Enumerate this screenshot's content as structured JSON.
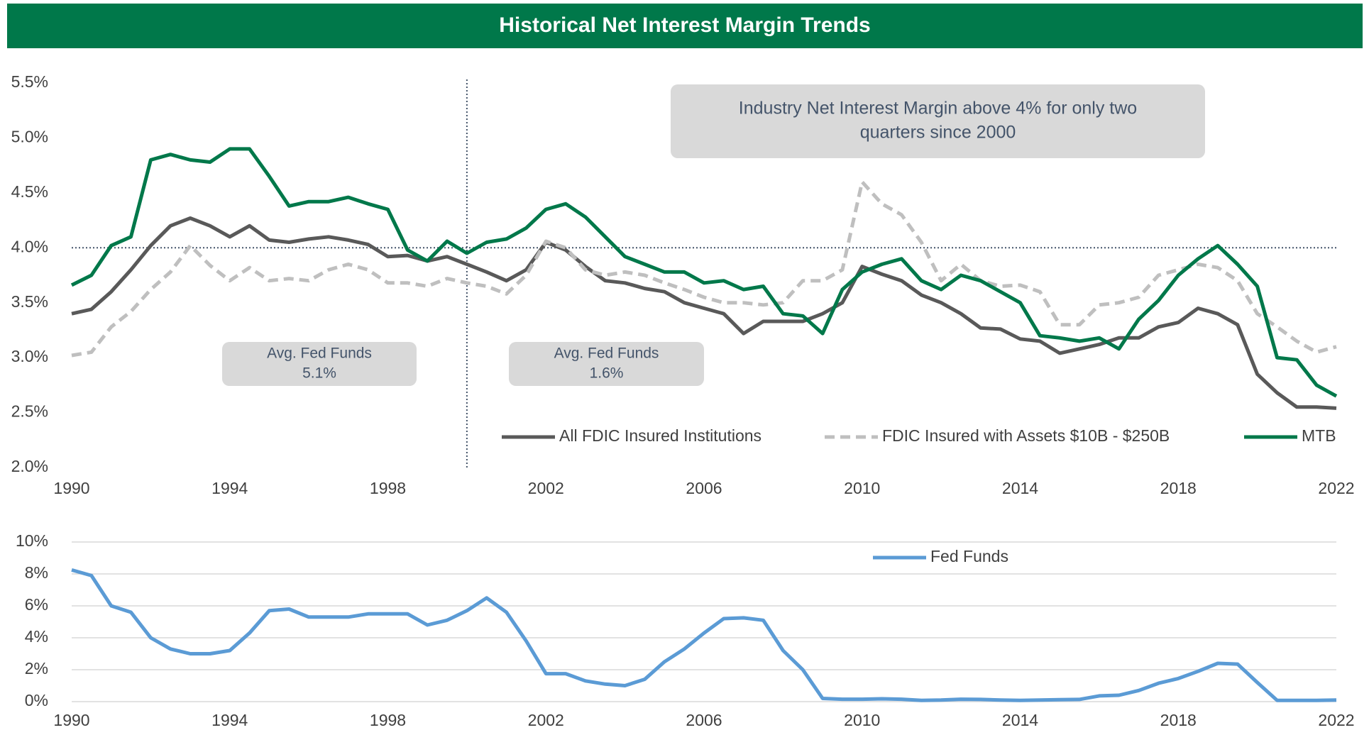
{
  "chart_data": [
    {
      "type": "line",
      "title": "Historical Net Interest Margin Trends",
      "x": [
        1990,
        1990.5,
        1991,
        1991.5,
        1992,
        1992.5,
        1993,
        1993.5,
        1994,
        1994.5,
        1995,
        1995.5,
        1996,
        1996.5,
        1997,
        1997.5,
        1998,
        1998.5,
        1999,
        1999.5,
        2000,
        2000.5,
        2001,
        2001.5,
        2002,
        2002.5,
        2003,
        2003.5,
        2004,
        2004.5,
        2005,
        2005.5,
        2006,
        2006.5,
        2007,
        2007.5,
        2008,
        2008.5,
        2009,
        2009.5,
        2010,
        2010.5,
        2011,
        2011.5,
        2012,
        2012.5,
        2013,
        2013.5,
        2014,
        2014.5,
        2015,
        2015.5,
        2016,
        2016.5,
        2017,
        2017.5,
        2018,
        2018.5,
        2019,
        2019.5,
        2020,
        2020.5,
        2021,
        2021.5,
        2022
      ],
      "series": [
        {
          "name": "All FDIC Insured Institutions",
          "color": "#595959",
          "line_style": "solid",
          "values": [
            3.4,
            3.44,
            3.6,
            3.8,
            4.02,
            4.2,
            4.27,
            4.2,
            4.1,
            4.2,
            4.07,
            4.05,
            4.08,
            4.1,
            4.07,
            4.03,
            3.92,
            3.93,
            3.88,
            3.92,
            3.85,
            3.78,
            3.7,
            3.8,
            4.05,
            3.98,
            3.83,
            3.7,
            3.68,
            3.63,
            3.6,
            3.5,
            3.45,
            3.4,
            3.22,
            3.33,
            3.33,
            3.33,
            3.4,
            3.5,
            3.83,
            3.76,
            3.7,
            3.57,
            3.5,
            3.4,
            3.27,
            3.26,
            3.17,
            3.15,
            3.04,
            3.08,
            3.12,
            3.18,
            3.18,
            3.28,
            3.32,
            3.45,
            3.4,
            3.3,
            2.85,
            2.68,
            2.55,
            2.55,
            2.54
          ]
        },
        {
          "name": "FDIC Insured with Assets $10B - $250B",
          "color": "#bfbfbf",
          "line_style": "dashed",
          "values": [
            3.02,
            3.05,
            3.28,
            3.42,
            3.62,
            3.78,
            4.02,
            3.84,
            3.7,
            3.82,
            3.7,
            3.72,
            3.7,
            3.8,
            3.85,
            3.8,
            3.68,
            3.68,
            3.65,
            3.72,
            3.68,
            3.65,
            3.58,
            3.75,
            4.06,
            4.0,
            3.8,
            3.75,
            3.78,
            3.75,
            3.68,
            3.62,
            3.55,
            3.5,
            3.5,
            3.48,
            3.5,
            3.7,
            3.7,
            3.8,
            4.6,
            4.4,
            4.3,
            4.05,
            3.7,
            3.85,
            3.7,
            3.65,
            3.66,
            3.6,
            3.3,
            3.3,
            3.48,
            3.5,
            3.55,
            3.75,
            3.8,
            3.85,
            3.82,
            3.7,
            3.4,
            3.28,
            3.15,
            3.05,
            3.1
          ]
        },
        {
          "name": "MTB",
          "color": "#00784a",
          "line_style": "solid",
          "values": [
            3.66,
            3.75,
            4.02,
            4.1,
            4.8,
            4.85,
            4.8,
            4.78,
            4.9,
            4.9,
            4.65,
            4.38,
            4.42,
            4.42,
            4.46,
            4.4,
            4.35,
            3.98,
            3.88,
            4.06,
            3.95,
            4.05,
            4.08,
            4.18,
            4.35,
            4.4,
            4.28,
            4.1,
            3.92,
            3.85,
            3.78,
            3.78,
            3.68,
            3.7,
            3.62,
            3.65,
            3.4,
            3.38,
            3.22,
            3.62,
            3.78,
            3.85,
            3.9,
            3.7,
            3.62,
            3.75,
            3.7,
            3.6,
            3.5,
            3.2,
            3.18,
            3.15,
            3.18,
            3.08,
            3.35,
            3.52,
            3.75,
            3.9,
            4.02,
            3.85,
            3.65,
            3.0,
            2.98,
            2.75,
            2.65
          ]
        }
      ],
      "xlim": [
        1990,
        2022
      ],
      "xticks": [
        1990,
        1994,
        1998,
        2002,
        2006,
        2010,
        2014,
        2018,
        2022
      ],
      "ylim": [
        2.0,
        5.5
      ],
      "yticks": [
        {
          "value": 2.0,
          "label": "2.0%"
        },
        {
          "value": 2.5,
          "label": "2.5%"
        },
        {
          "value": 3.0,
          "label": "3.0%"
        },
        {
          "value": 3.5,
          "label": "3.5%"
        },
        {
          "value": 4.0,
          "label": "4.0%"
        },
        {
          "value": 4.5,
          "label": "4.5%"
        },
        {
          "value": 5.0,
          "label": "5.0%"
        },
        {
          "value": 5.5,
          "label": "5.5%"
        }
      ],
      "grid": false,
      "hline": 4.0,
      "vline": 2000,
      "annotations": [
        {
          "lines": [
            "Industry Net Interest Margin above 4% for only two",
            "quarters since 2000"
          ]
        },
        {
          "lines": [
            "Avg. Fed Funds",
            "5.1%"
          ]
        },
        {
          "lines": [
            "Avg. Fed Funds",
            "1.6%"
          ]
        }
      ]
    },
    {
      "type": "line",
      "x": [
        1990,
        1990.5,
        1991,
        1991.5,
        1992,
        1992.5,
        1993,
        1993.5,
        1994,
        1994.5,
        1995,
        1995.5,
        1996,
        1996.5,
        1997,
        1997.5,
        1998,
        1998.5,
        1999,
        1999.5,
        2000,
        2000.5,
        2001,
        2001.5,
        2002,
        2002.5,
        2003,
        2003.5,
        2004,
        2004.5,
        2005,
        2005.5,
        2006,
        2006.5,
        2007,
        2007.5,
        2008,
        2008.5,
        2009,
        2009.5,
        2010,
        2010.5,
        2011,
        2011.5,
        2012,
        2012.5,
        2013,
        2013.5,
        2014,
        2014.5,
        2015,
        2015.5,
        2016,
        2016.5,
        2017,
        2017.5,
        2018,
        2018.5,
        2019,
        2019.5,
        2020,
        2020.5,
        2021,
        2021.5,
        2022
      ],
      "series": [
        {
          "name": "Fed Funds",
          "color": "#5b9bd5",
          "line_style": "solid",
          "values": [
            8.25,
            7.9,
            6.0,
            5.6,
            4.0,
            3.3,
            3.0,
            3.0,
            3.2,
            4.3,
            5.7,
            5.8,
            5.3,
            5.3,
            5.3,
            5.5,
            5.5,
            5.5,
            4.8,
            5.1,
            5.7,
            6.5,
            5.6,
            3.8,
            1.75,
            1.75,
            1.3,
            1.1,
            1.0,
            1.4,
            2.5,
            3.3,
            4.3,
            5.2,
            5.25,
            5.1,
            3.2,
            2.0,
            0.2,
            0.15,
            0.15,
            0.18,
            0.15,
            0.08,
            0.1,
            0.15,
            0.14,
            0.1,
            0.08,
            0.1,
            0.12,
            0.14,
            0.36,
            0.4,
            0.7,
            1.15,
            1.45,
            1.9,
            2.4,
            2.35,
            1.2,
            0.08,
            0.08,
            0.08,
            0.1
          ]
        }
      ],
      "xlim": [
        1990,
        2022
      ],
      "xticks": [
        1990,
        1994,
        1998,
        2002,
        2006,
        2010,
        2014,
        2018,
        2022
      ],
      "ylim": [
        0,
        10
      ],
      "yticks": [
        {
          "value": 0,
          "label": "0%"
        },
        {
          "value": 2,
          "label": "2%"
        },
        {
          "value": 4,
          "label": "4%"
        },
        {
          "value": 6,
          "label": "6%"
        },
        {
          "value": 8,
          "label": "8%"
        },
        {
          "value": 10,
          "label": "10%"
        }
      ],
      "grid": true
    }
  ]
}
